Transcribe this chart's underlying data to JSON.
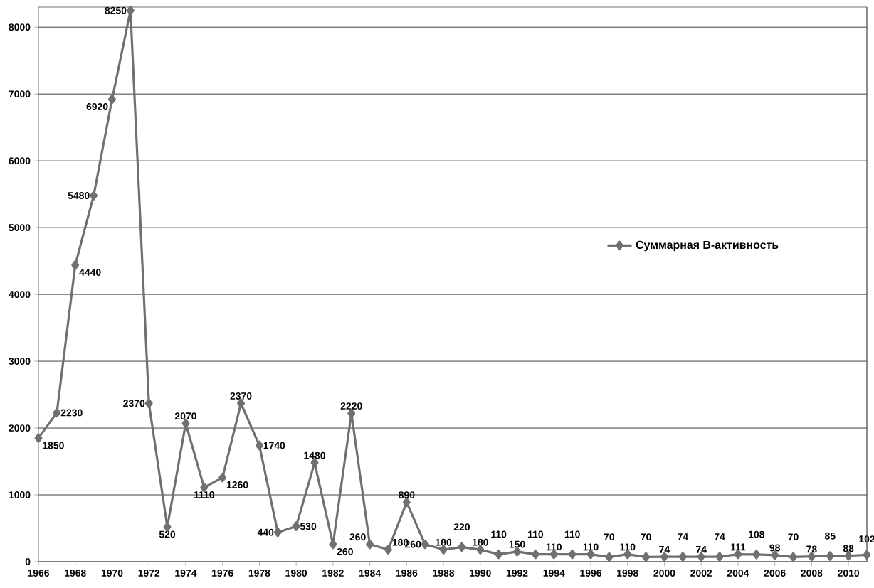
{
  "chart_data": {
    "type": "line",
    "x": [
      1966,
      1967,
      1968,
      1969,
      1970,
      1971,
      1972,
      1973,
      1974,
      1975,
      1976,
      1977,
      1978,
      1979,
      1980,
      1981,
      1982,
      1983,
      1984,
      1985,
      1986,
      1987,
      1988,
      1989,
      1990,
      1991,
      1992,
      1993,
      1994,
      1995,
      1996,
      1997,
      1998,
      1999,
      2000,
      2001,
      2002,
      2003,
      2004,
      2005,
      2006,
      2007,
      2008,
      2009,
      2010,
      2011
    ],
    "series": [
      {
        "name": "Суммарная В-активность",
        "color": "#707070",
        "values": [
          1850,
          2230,
          4440,
          5480,
          6920,
          8250,
          2370,
          520,
          2070,
          1110,
          1260,
          2370,
          1740,
          440,
          530,
          1480,
          260,
          2220,
          260,
          180,
          890,
          260,
          180,
          220,
          180,
          110,
          150,
          110,
          110,
          110,
          110,
          70,
          110,
          70,
          74,
          74,
          74,
          74,
          111,
          108,
          98,
          70,
          78,
          85,
          88,
          102
        ]
      }
    ],
    "xlim": [
      1966,
      2011
    ],
    "xticks": [
      1966,
      1968,
      1970,
      1972,
      1974,
      1976,
      1978,
      1980,
      1982,
      1984,
      1986,
      1988,
      1990,
      1992,
      1994,
      1996,
      1998,
      2000,
      2002,
      2004,
      2006,
      2008,
      2010
    ],
    "ylim": [
      0,
      8300
    ],
    "yticks": [
      0,
      1000,
      2000,
      3000,
      4000,
      5000,
      6000,
      7000,
      8000
    ],
    "grid": "y",
    "legend": "right",
    "marker": "diamond",
    "line_style": "solid",
    "data_labels": true
  }
}
